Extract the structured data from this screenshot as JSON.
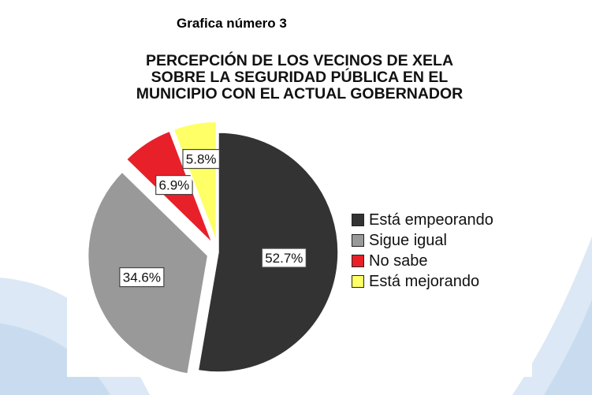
{
  "caption": "Grafica número 3",
  "chart_data": {
    "type": "pie",
    "title_lines": [
      "PERCEPCIÓN DE LOS VECINOS DE XELA",
      "SOBRE LA SEGURIDAD PÚBLICA EN EL",
      "MUNICIPIO CON EL ACTUAL GOBERNADOR"
    ],
    "slices": [
      {
        "label": "Está empeorando",
        "value": 52.7,
        "display": "52.7%",
        "color": "#333333",
        "exploded": false
      },
      {
        "label": "Sigue igual",
        "value": 34.6,
        "display": "34.6%",
        "color": "#999999",
        "exploded": true
      },
      {
        "label": "No sabe",
        "value": 6.9,
        "display": "6.9%",
        "color": "#e8202a",
        "exploded": true
      },
      {
        "label": "Está mejorando",
        "value": 5.8,
        "display": "5.8%",
        "color": "#ffff66",
        "exploded": true
      }
    ],
    "legend_position": "right"
  }
}
